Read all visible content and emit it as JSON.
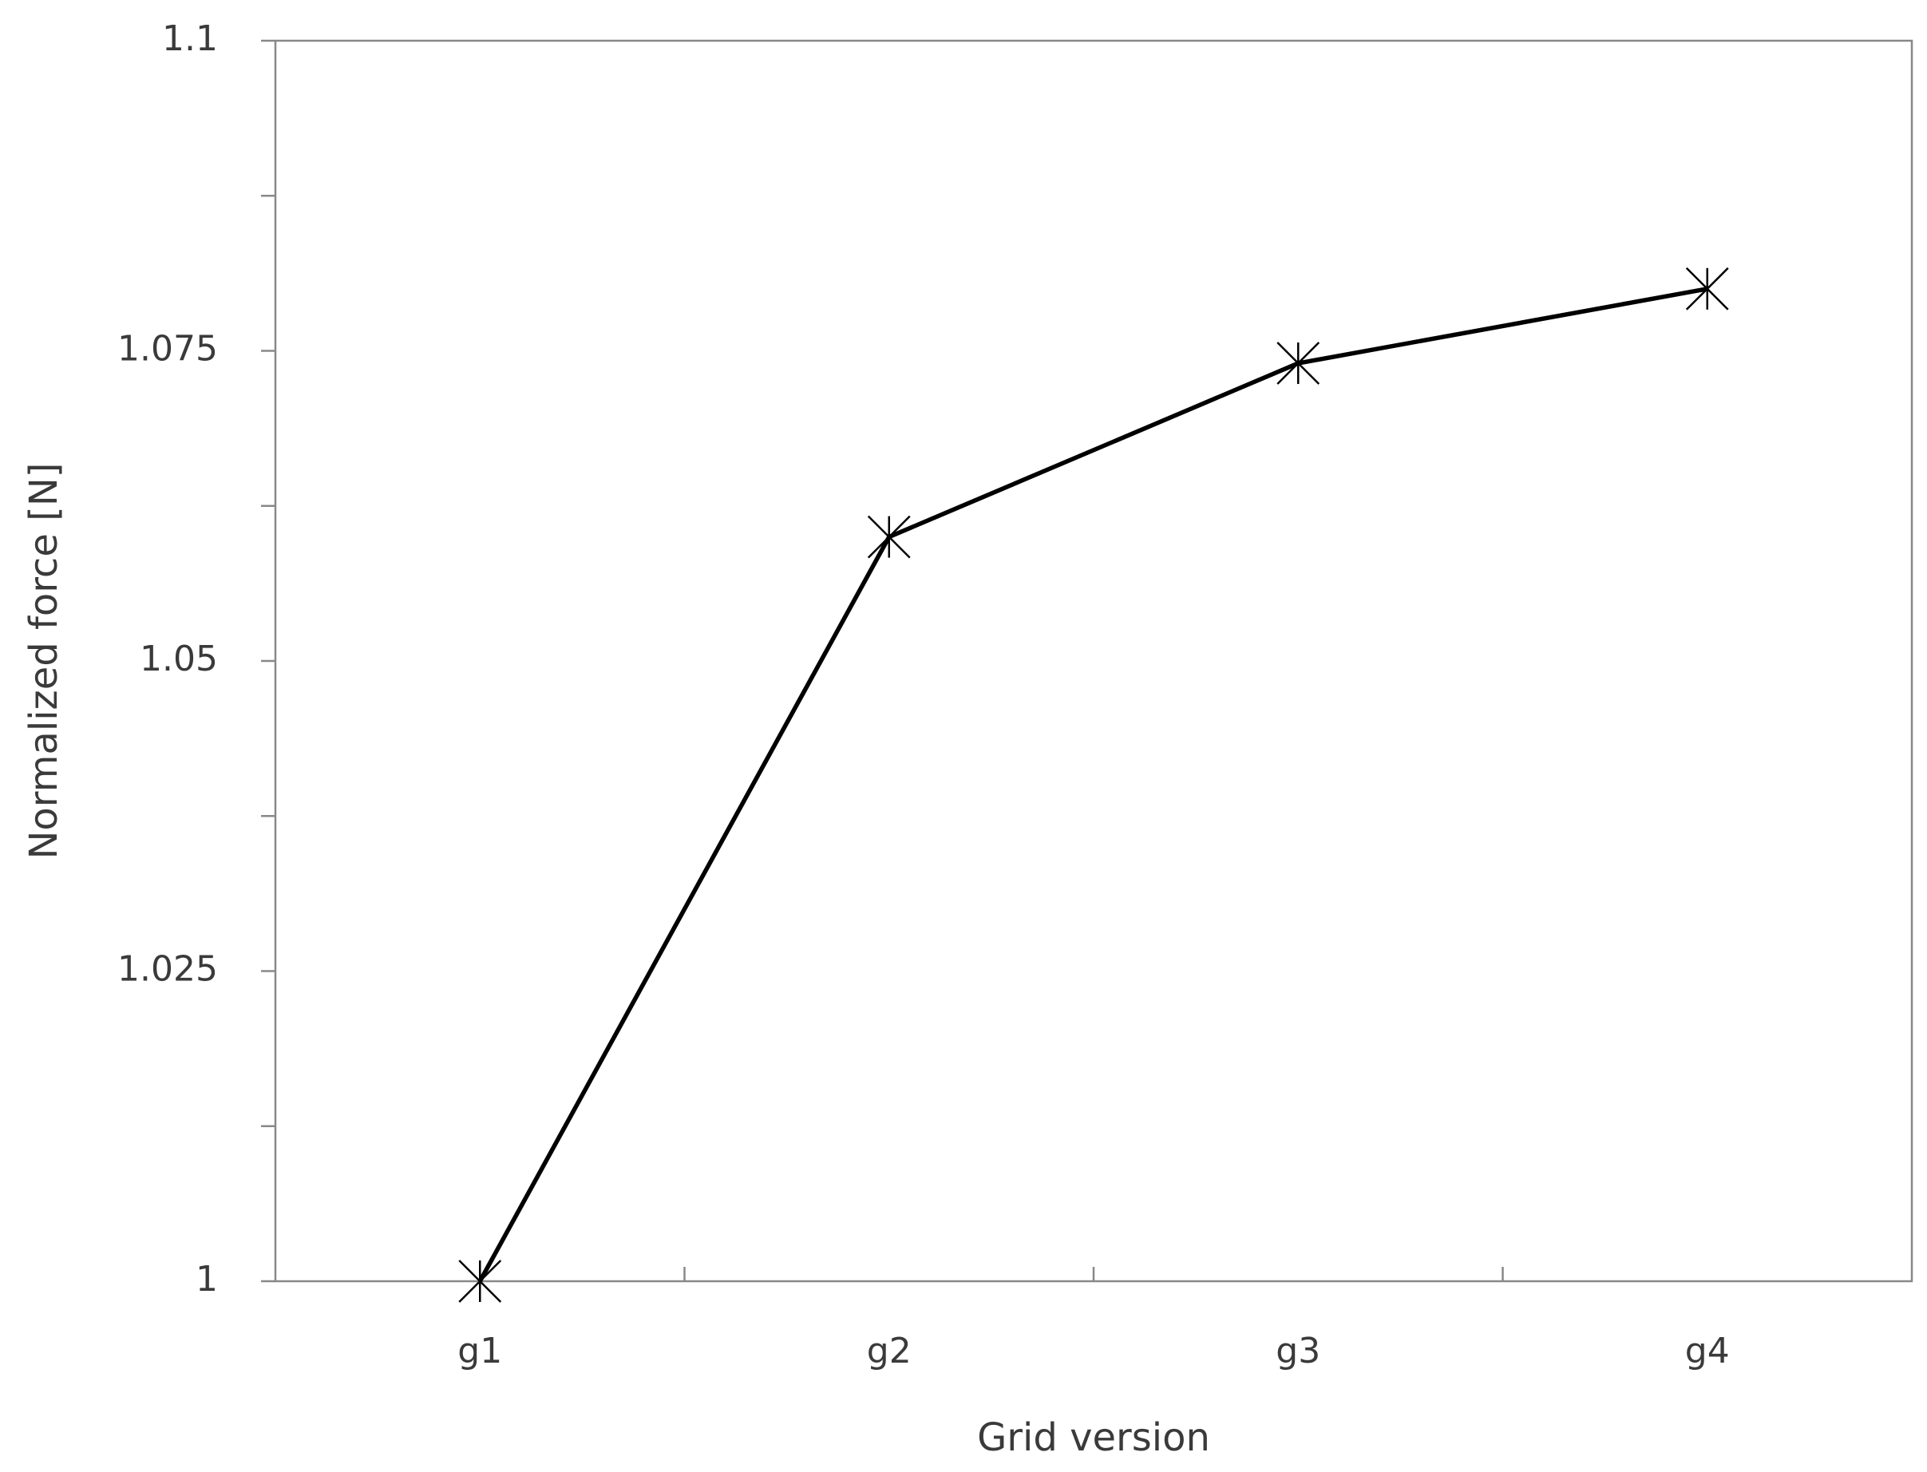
{
  "chart_data": {
    "type": "line",
    "x_label": "Grid version",
    "y_label": "Normalized force [N]",
    "categories": [
      "g1",
      "g2",
      "g3",
      "g4"
    ],
    "series": [
      {
        "values": [
          1.0,
          1.06,
          1.074,
          1.08
        ],
        "color": "#000000",
        "marker": "asterisk"
      }
    ],
    "ylim": [
      1,
      1.1
    ],
    "yticks": [
      1,
      1.025,
      1.05,
      1.075,
      1.1
    ],
    "yminorticks": [
      1.0125,
      1.0375,
      1.0625,
      1.0875
    ],
    "grid": false
  }
}
